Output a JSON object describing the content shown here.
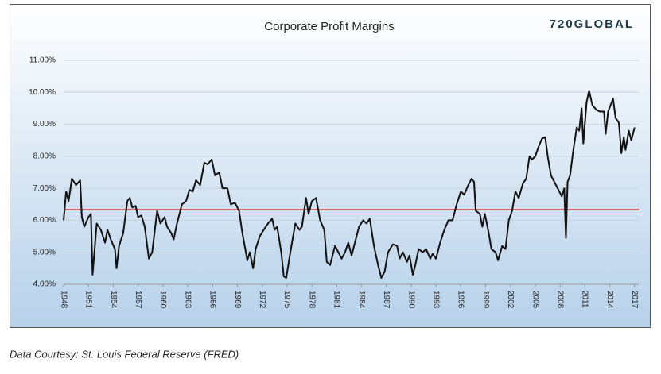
{
  "chart_data": {
    "type": "line",
    "title": "Corporate Profit Margins",
    "brand": "720GLOBAL",
    "source": "Data Courtesy: St. Louis Federal Reserve (FRED)",
    "x": [
      1948,
      1948.3,
      1948.6,
      1949,
      1949.5,
      1950,
      1950.2,
      1950.5,
      1951,
      1951.3,
      1951.5,
      1952,
      1952.5,
      1953,
      1953.3,
      1953.7,
      1954.2,
      1954.4,
      1954.7,
      1955.2,
      1955.7,
      1956,
      1956.3,
      1956.7,
      1957,
      1957.4,
      1957.8,
      1958.3,
      1958.7,
      1959.3,
      1959.7,
      1960.2,
      1960.5,
      1961,
      1961.3,
      1961.7,
      1962.3,
      1962.8,
      1963.2,
      1963.6,
      1964,
      1964.5,
      1965,
      1965.4,
      1965.9,
      1966.3,
      1966.8,
      1967.2,
      1967.8,
      1968.2,
      1968.7,
      1969.2,
      1969.6,
      1970.2,
      1970.5,
      1970.9,
      1971.2,
      1971.7,
      1972.3,
      1972.7,
      1973.2,
      1973.5,
      1973.8,
      1974.3,
      1974.6,
      1974.9,
      1975.4,
      1976,
      1976.5,
      1976.8,
      1977.3,
      1977.6,
      1978,
      1978.5,
      1979,
      1979.5,
      1979.8,
      1980.2,
      1980.8,
      1981.2,
      1981.6,
      1982,
      1982.4,
      1982.8,
      1983.3,
      1983.7,
      1984.2,
      1984.6,
      1985,
      1985.5,
      1986,
      1986.4,
      1986.8,
      1987.2,
      1987.8,
      1988.3,
      1988.6,
      1989,
      1989.5,
      1989.8,
      1990.2,
      1990.5,
      1990.9,
      1991.4,
      1991.8,
      1992.3,
      1992.6,
      1993,
      1993.5,
      1994,
      1994.5,
      1995,
      1995.5,
      1996,
      1996.4,
      1996.9,
      1997.3,
      1997.6,
      1997.8,
      1998.3,
      1998.6,
      1998.9,
      1999.3,
      1999.7,
      2000.2,
      2000.5,
      2001,
      2001.4,
      2001.8,
      2002.2,
      2002.6,
      2003,
      2003.5,
      2003.9,
      2004.3,
      2004.6,
      2005,
      2005.4,
      2005.8,
      2006.2,
      2006.5,
      2006.9,
      2007.3,
      2007.7,
      2008.2,
      2008.5,
      2008.7,
      2008.9,
      2009.2,
      2009.6,
      2010,
      2010.3,
      2010.6,
      2010.8,
      2011.2,
      2011.5,
      2011.9,
      2012.4,
      2012.8,
      2013.3,
      2013.5,
      2013.8,
      2014.4,
      2014.7,
      2015.1,
      2015.4,
      2015.7,
      2015.9,
      2016.3,
      2016.6,
      2017
    ],
    "series": [
      {
        "color": "#111111",
        "values": [
          6.0,
          6.9,
          6.6,
          7.3,
          7.1,
          7.25,
          6.1,
          5.8,
          6.1,
          6.2,
          4.3,
          5.9,
          5.7,
          5.3,
          5.7,
          5.4,
          5.1,
          4.5,
          5.2,
          5.6,
          6.6,
          6.7,
          6.4,
          6.45,
          6.1,
          6.15,
          5.8,
          4.8,
          5.0,
          6.3,
          5.9,
          6.1,
          5.8,
          5.6,
          5.4,
          5.9,
          6.5,
          6.6,
          6.95,
          6.9,
          7.25,
          7.1,
          7.8,
          7.75,
          7.9,
          7.4,
          7.5,
          7.0,
          7.0,
          6.5,
          6.55,
          6.3,
          5.6,
          4.75,
          5.0,
          4.5,
          5.1,
          5.5,
          5.75,
          5.9,
          6.05,
          5.7,
          5.8,
          5.0,
          4.25,
          4.2,
          5.0,
          5.9,
          5.7,
          5.8,
          6.7,
          6.2,
          6.6,
          6.7,
          6.0,
          5.7,
          4.7,
          4.6,
          5.2,
          5.0,
          4.8,
          5.0,
          5.3,
          4.9,
          5.4,
          5.8,
          6.0,
          5.9,
          6.05,
          5.2,
          4.6,
          4.2,
          4.4,
          5.0,
          5.25,
          5.2,
          4.8,
          5.0,
          4.7,
          4.9,
          4.3,
          4.6,
          5.1,
          5.0,
          5.1,
          4.8,
          4.95,
          4.8,
          5.3,
          5.7,
          6.0,
          6.0,
          6.5,
          6.9,
          6.8,
          7.1,
          7.3,
          7.2,
          6.3,
          6.2,
          5.8,
          6.2,
          5.7,
          5.1,
          5.0,
          4.75,
          5.2,
          5.1,
          6.0,
          6.3,
          6.9,
          6.7,
          7.15,
          7.3,
          8.0,
          7.9,
          8.0,
          8.3,
          8.55,
          8.6,
          8.0,
          7.4,
          7.2,
          7.0,
          6.75,
          7.0,
          5.45,
          7.2,
          7.4,
          8.2,
          8.9,
          8.8,
          9.5,
          8.4,
          9.7,
          10.05,
          9.6,
          9.45,
          9.4,
          9.4,
          8.7,
          9.4,
          9.8,
          9.2,
          9.05,
          8.1,
          8.6,
          8.2,
          8.8,
          8.5,
          8.9
        ]
      }
    ],
    "reference_line": {
      "value": 6.33,
      "color": "#e02020"
    },
    "xlim": [
      1948,
      2017.5
    ],
    "xticks": [
      1948,
      1951,
      1954,
      1957,
      1960,
      1963,
      1966,
      1969,
      1972,
      1975,
      1978,
      1981,
      1984,
      1987,
      1990,
      1993,
      1996,
      1999,
      2002,
      2005,
      2008,
      2011,
      2014,
      2017
    ],
    "ylim": [
      4,
      11
    ],
    "yticks": [
      {
        "value": 4,
        "label": "4.00%"
      },
      {
        "value": 5,
        "label": "5.00%"
      },
      {
        "value": 6,
        "label": "6.00%"
      },
      {
        "value": 7,
        "label": "7.00%"
      },
      {
        "value": 8,
        "label": "8.00%"
      },
      {
        "value": 9,
        "label": "9.00%"
      },
      {
        "value": 10,
        "label": "10.00%"
      },
      {
        "value": 11,
        "label": "11.00%"
      }
    ],
    "grid": true
  }
}
